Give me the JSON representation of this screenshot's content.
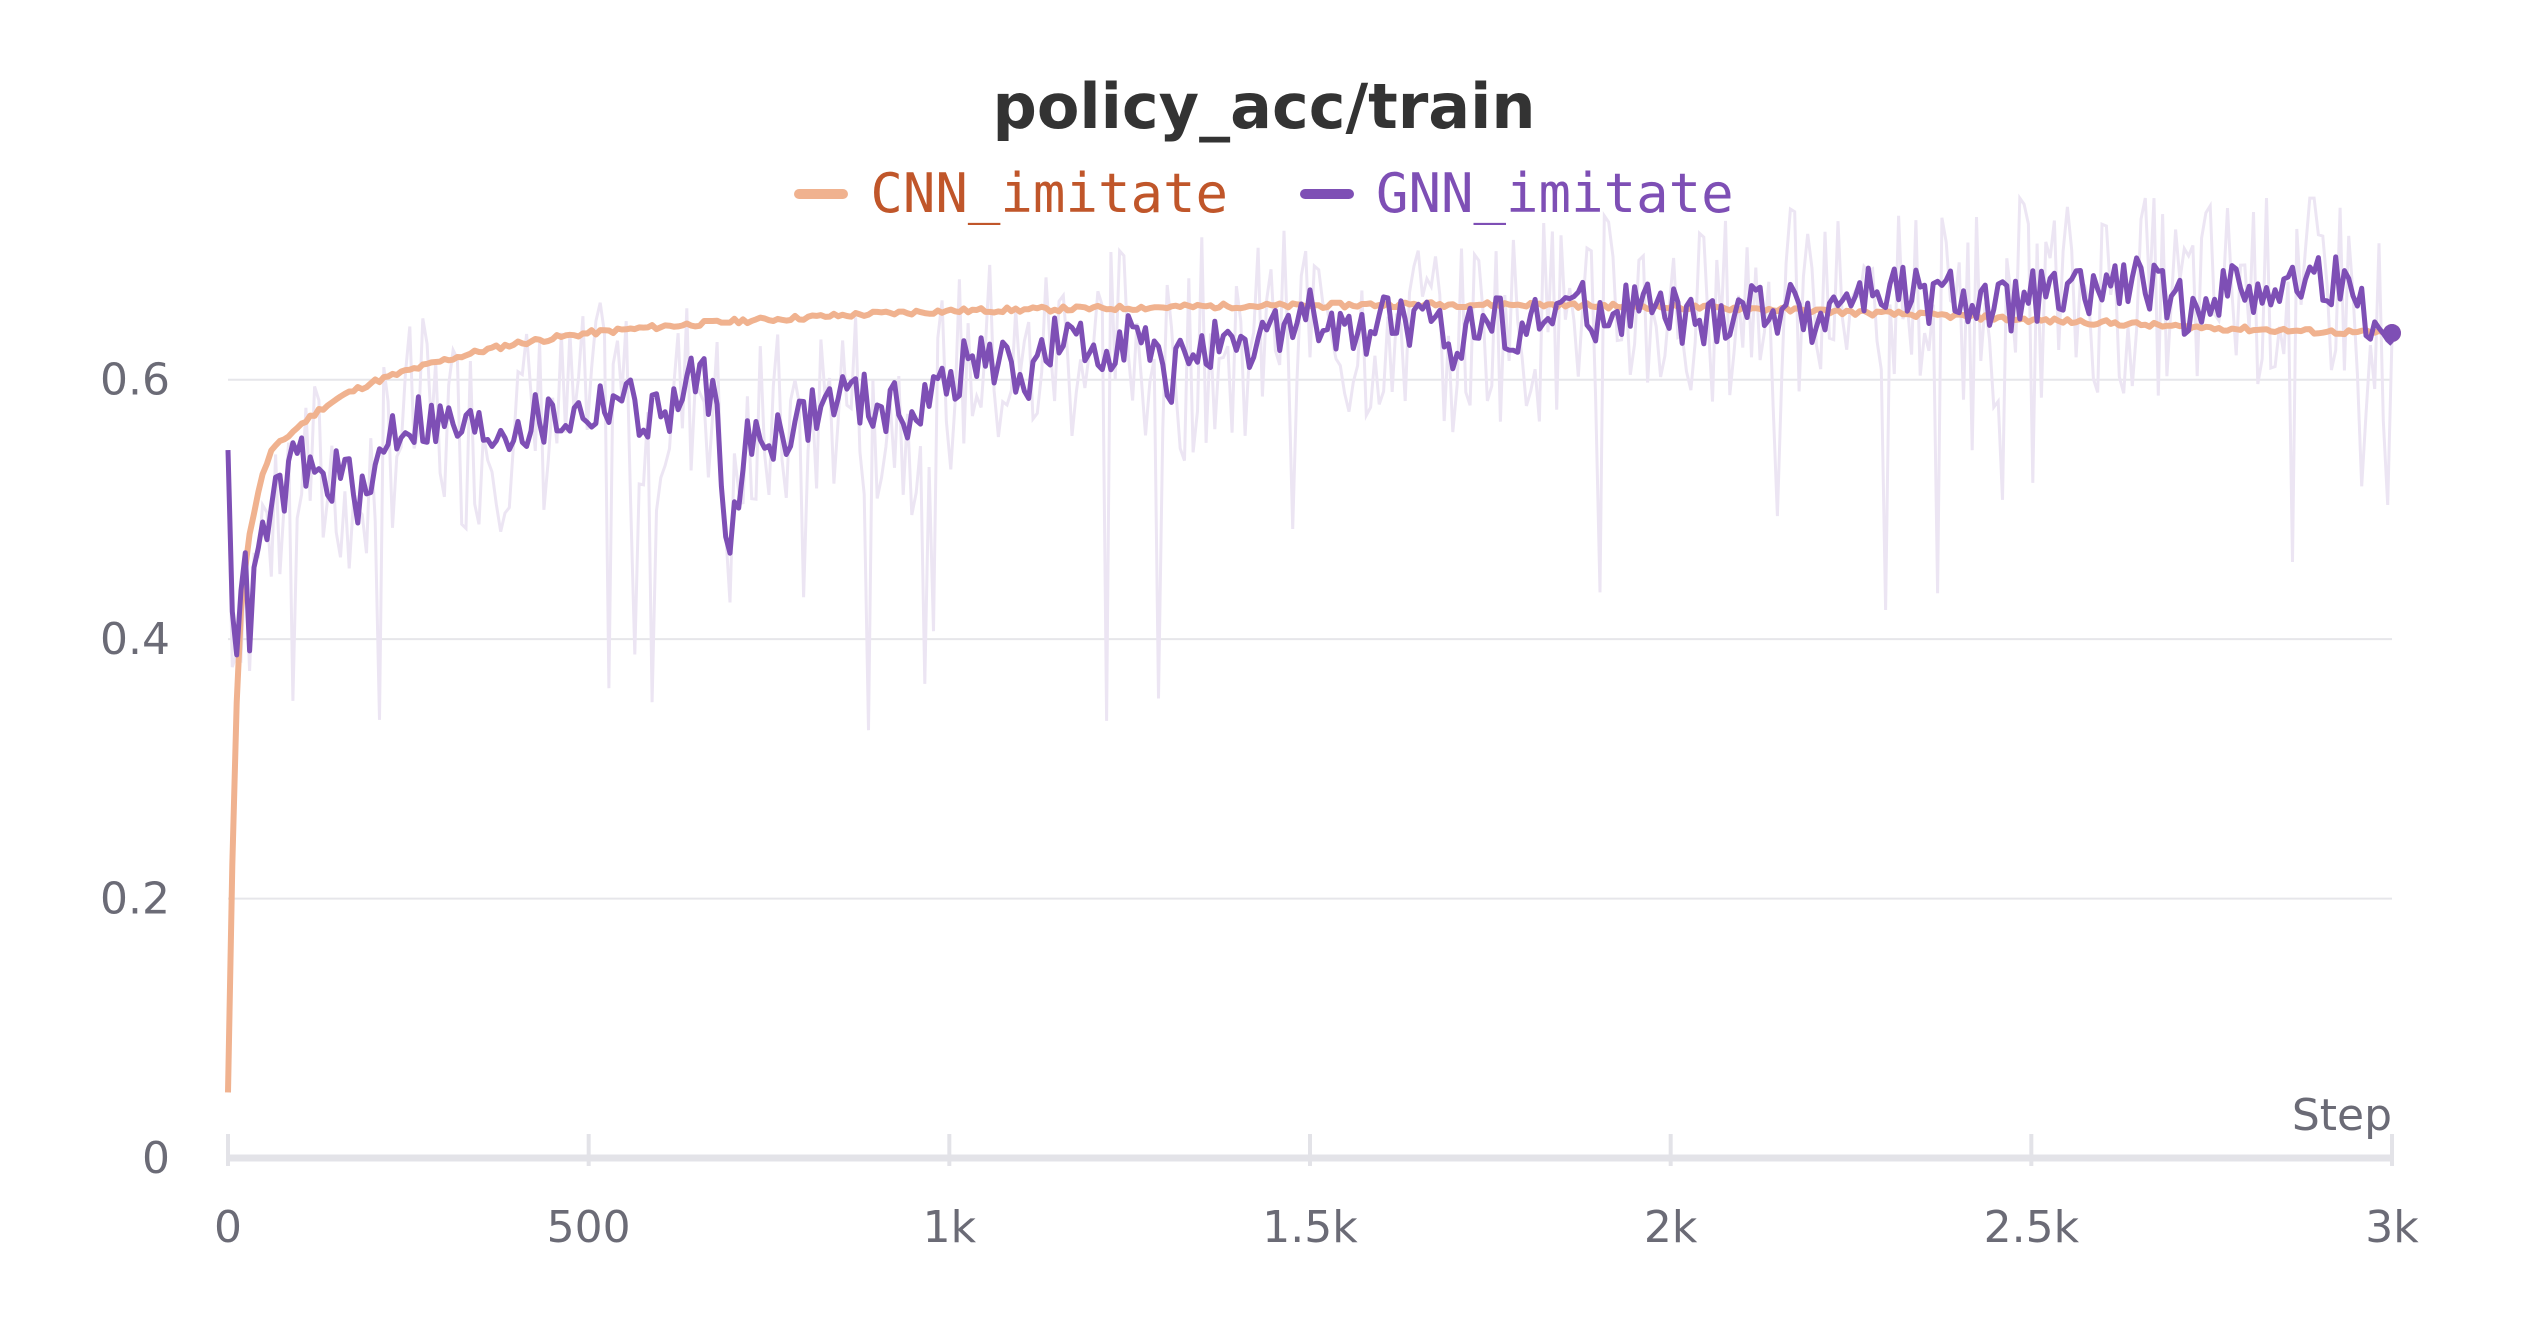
{
  "chart_data": {
    "type": "line",
    "title": "policy_acc/train",
    "xlabel": "Step",
    "ylabel": "",
    "xlim": [
      0,
      3000
    ],
    "ylim": [
      0,
      0.7
    ],
    "x_ticks": [
      0,
      500,
      1000,
      1500,
      2000,
      2500,
      3000
    ],
    "x_tick_labels": [
      "0",
      "500",
      "1k",
      "1.5k",
      "2k",
      "2.5k",
      "3k"
    ],
    "y_ticks": [
      0,
      0.2,
      0.4,
      0.6
    ],
    "y_tick_labels": [
      "0",
      "0.2",
      "0.4",
      "0.6"
    ],
    "grid": true,
    "legend_position": "top-center",
    "series": [
      {
        "name": "CNN_imitate",
        "color": "#f0b28f",
        "label_color": "#c0562a",
        "smoothed": {
          "x": [
            0,
            5,
            10,
            15,
            20,
            30,
            40,
            50,
            60,
            80,
            100,
            130,
            160,
            200,
            250,
            300,
            350,
            400,
            450,
            500,
            600,
            700,
            800,
            900,
            1000,
            1100,
            1200,
            1300,
            1400,
            1500,
            1600,
            1700,
            1800,
            1900,
            2000,
            2100,
            2200,
            2300,
            2400,
            2500,
            2600,
            2700,
            2800,
            2900,
            3000
          ],
          "y": [
            0.05,
            0.2,
            0.32,
            0.4,
            0.44,
            0.48,
            0.51,
            0.53,
            0.545,
            0.555,
            0.565,
            0.578,
            0.588,
            0.598,
            0.607,
            0.615,
            0.622,
            0.628,
            0.632,
            0.636,
            0.641,
            0.645,
            0.648,
            0.651,
            0.653,
            0.654,
            0.655,
            0.656,
            0.657,
            0.657,
            0.658,
            0.658,
            0.658,
            0.657,
            0.656,
            0.655,
            0.653,
            0.651,
            0.649,
            0.646,
            0.644,
            0.641,
            0.639,
            0.637,
            0.636
          ]
        }
      },
      {
        "name": "GNN_imitate",
        "color": "#7e4fb5",
        "label_color": "#7e4fb5",
        "smoothed": {
          "x": [
            0,
            10,
            20,
            30,
            40,
            60,
            80,
            100,
            130,
            160,
            190,
            220,
            260,
            300,
            350,
            400,
            450,
            500,
            540,
            580,
            620,
            660,
            680,
            690,
            700,
            720,
            760,
            800,
            850,
            900,
            950,
            1000,
            1050,
            1100,
            1150,
            1200,
            1250,
            1300,
            1350,
            1400,
            1450,
            1500,
            1550,
            1600,
            1650,
            1700,
            1750,
            1800,
            1850,
            1900,
            1950,
            2000,
            2050,
            2100,
            2150,
            2200,
            2250,
            2300,
            2350,
            2400,
            2450,
            2500,
            2550,
            2600,
            2650,
            2700,
            2750,
            2800,
            2850,
            2900,
            2950,
            2990,
            3000
          ],
          "y": [
            0.53,
            0.38,
            0.47,
            0.41,
            0.46,
            0.5,
            0.52,
            0.54,
            0.52,
            0.53,
            0.5,
            0.56,
            0.57,
            0.565,
            0.56,
            0.565,
            0.57,
            0.575,
            0.59,
            0.57,
            0.58,
            0.61,
            0.56,
            0.5,
            0.48,
            0.55,
            0.56,
            0.57,
            0.59,
            0.58,
            0.575,
            0.6,
            0.62,
            0.6,
            0.63,
            0.62,
            0.64,
            0.6,
            0.63,
            0.61,
            0.64,
            0.65,
            0.63,
            0.65,
            0.64,
            0.63,
            0.65,
            0.64,
            0.66,
            0.65,
            0.66,
            0.65,
            0.64,
            0.66,
            0.655,
            0.65,
            0.665,
            0.67,
            0.66,
            0.665,
            0.655,
            0.665,
            0.66,
            0.67,
            0.675,
            0.655,
            0.665,
            0.675,
            0.67,
            0.68,
            0.665,
            0.63,
            0.636
          ]
        }
      }
    ]
  }
}
